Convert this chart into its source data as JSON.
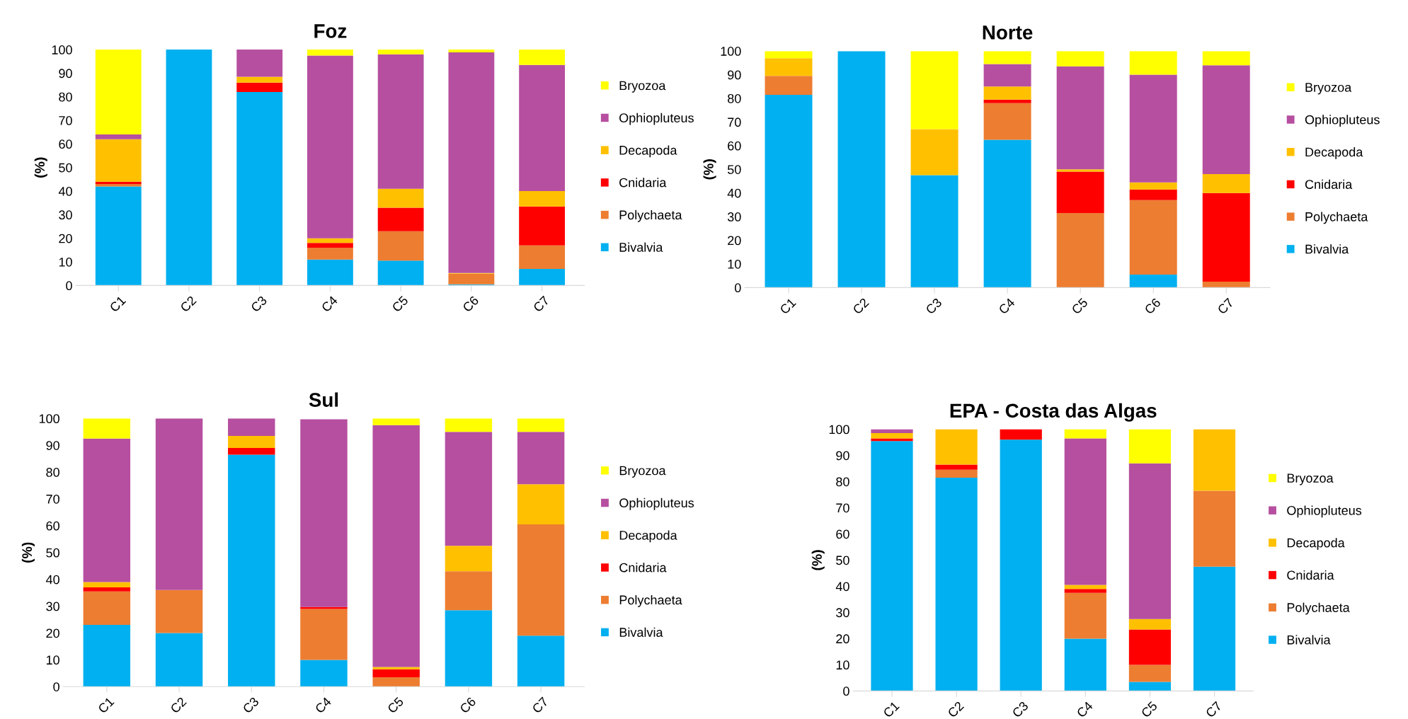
{
  "chart_data": [
    {
      "type": "bar",
      "stacked": true,
      "title": "Foz",
      "ylabel": "(%)",
      "categories": [
        "C1",
        "C2",
        "C3",
        "C4",
        "C5",
        "C6",
        "C7"
      ],
      "ylim": [
        0,
        100
      ],
      "yticks": [
        0,
        10,
        20,
        30,
        40,
        50,
        60,
        70,
        80,
        90,
        100
      ],
      "grid": false,
      "legend": "right",
      "series": [
        {
          "name": "Bivalvia",
          "color": "#00b0f0",
          "values": [
            42,
            100,
            82,
            11,
            10.5,
            0.5,
            7
          ]
        },
        {
          "name": "Polychaeta",
          "color": "#ed7d31",
          "values": [
            1,
            0,
            0,
            5,
            12.5,
            4.5,
            10
          ]
        },
        {
          "name": "Cnidaria",
          "color": "#ff0000",
          "values": [
            1,
            0,
            4,
            2,
            10,
            0,
            16.5
          ]
        },
        {
          "name": "Decapoda",
          "color": "#ffc000",
          "values": [
            18,
            0,
            2.5,
            2,
            8,
            0.3,
            6.5
          ]
        },
        {
          "name": "Ophiopluteus",
          "color": "#b64fa0",
          "values": [
            2,
            0,
            11.5,
            77.5,
            57,
            93.5,
            53.5
          ]
        },
        {
          "name": "Bryozoa",
          "color": "#ffff00",
          "values": [
            36,
            0,
            0,
            2.5,
            2,
            1.2,
            6.5
          ]
        }
      ]
    },
    {
      "type": "bar",
      "stacked": true,
      "title": "Norte",
      "ylabel": "(%)",
      "categories": [
        "C1",
        "C2",
        "C3",
        "C4",
        "C5",
        "C6",
        "C7"
      ],
      "ylim": [
        0,
        100
      ],
      "yticks": [
        0,
        10,
        20,
        30,
        40,
        50,
        60,
        70,
        80,
        90,
        100
      ],
      "grid": false,
      "legend": "right",
      "series": [
        {
          "name": "Bivalvia",
          "color": "#00b0f0",
          "values": [
            81.5,
            100,
            47.5,
            62.5,
            0,
            5.5,
            0
          ]
        },
        {
          "name": "Polychaeta",
          "color": "#ed7d31",
          "values": [
            8,
            0,
            0,
            15.5,
            31.5,
            31.5,
            2.5
          ]
        },
        {
          "name": "Cnidaria",
          "color": "#ff0000",
          "values": [
            0,
            0,
            0,
            1.5,
            17.5,
            4.5,
            37.5
          ]
        },
        {
          "name": "Decapoda",
          "color": "#ffc000",
          "values": [
            7.5,
            0,
            19.5,
            5.5,
            1,
            3,
            8
          ]
        },
        {
          "name": "Ophiopluteus",
          "color": "#b64fa0",
          "values": [
            0,
            0,
            0,
            9.5,
            43.5,
            45.5,
            46
          ]
        },
        {
          "name": "Bryozoa",
          "color": "#ffff00",
          "values": [
            3,
            0,
            33,
            5.5,
            6.5,
            10,
            6
          ]
        }
      ]
    },
    {
      "type": "bar",
      "stacked": true,
      "title": "Sul",
      "ylabel": "(%)",
      "categories": [
        "C1",
        "C2",
        "C3",
        "C4",
        "C5",
        "C6",
        "C7"
      ],
      "ylim": [
        0,
        100
      ],
      "yticks": [
        0,
        10,
        20,
        30,
        40,
        50,
        60,
        70,
        80,
        90,
        100
      ],
      "grid": false,
      "legend": "right",
      "series": [
        {
          "name": "Bivalvia",
          "color": "#00b0f0",
          "values": [
            23,
            20,
            86.5,
            10,
            0,
            28.5,
            19
          ]
        },
        {
          "name": "Polychaeta",
          "color": "#ed7d31",
          "values": [
            12.5,
            16,
            0,
            19,
            3.5,
            14.5,
            41.5
          ]
        },
        {
          "name": "Cnidaria",
          "color": "#ff0000",
          "values": [
            1.5,
            0,
            2.5,
            0.7,
            3,
            0,
            0
          ]
        },
        {
          "name": "Decapoda",
          "color": "#ffc000",
          "values": [
            2,
            0,
            4.5,
            0,
            0.8,
            9.5,
            15
          ]
        },
        {
          "name": "Ophiopluteus",
          "color": "#b64fa0",
          "values": [
            53.5,
            64,
            6.5,
            70,
            90.2,
            42.5,
            19.5
          ]
        },
        {
          "name": "Bryozoa",
          "color": "#ffff00",
          "values": [
            7.5,
            0,
            0,
            null,
            2.5,
            5,
            5
          ]
        }
      ]
    },
    {
      "type": "bar",
      "stacked": true,
      "title": "EPA - Costa das Algas",
      "ylabel": "(%)",
      "categories": [
        "C1",
        "C2",
        "C3",
        "C4",
        "C5",
        "C7"
      ],
      "ylim": [
        0,
        100
      ],
      "yticks": [
        0,
        10,
        20,
        30,
        40,
        50,
        60,
        70,
        80,
        90,
        100
      ],
      "grid": false,
      "legend": "right",
      "series": [
        {
          "name": "Bivalvia",
          "color": "#00b0f0",
          "values": [
            95.5,
            81.5,
            96,
            20,
            3.5,
            47.5
          ]
        },
        {
          "name": "Polychaeta",
          "color": "#ed7d31",
          "values": [
            0,
            3,
            0,
            17.5,
            6.5,
            29
          ]
        },
        {
          "name": "Cnidaria",
          "color": "#ff0000",
          "values": [
            1,
            2,
            4,
            1.5,
            13.5,
            0
          ]
        },
        {
          "name": "Decapoda",
          "color": "#ffc000",
          "values": [
            2,
            13.5,
            0,
            1.5,
            4,
            23.5
          ]
        },
        {
          "name": "Ophiopluteus",
          "color": "#b64fa0",
          "values": [
            1.5,
            0,
            0,
            56,
            59.5,
            0
          ]
        },
        {
          "name": "Bryozoa",
          "color": "#ffff00",
          "values": [
            0,
            0,
            0,
            3.5,
            13,
            0
          ]
        }
      ]
    }
  ]
}
